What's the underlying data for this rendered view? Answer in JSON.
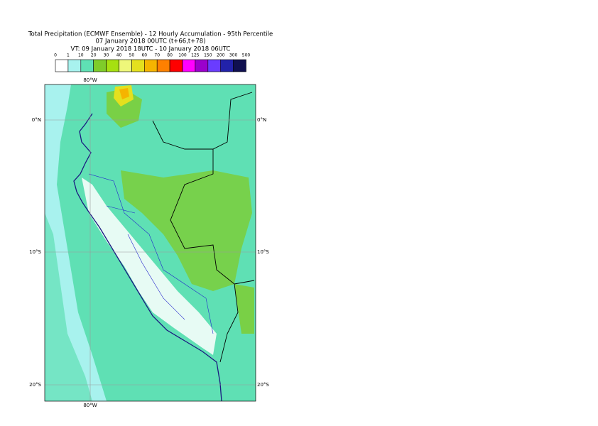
{
  "title_lines": [
    "Total Precipitation (ECMWF Ensemble) - 12 Hourly Accumulation - 95th Percentile",
    "07 January 2018 00UTC (t+66,t+78)",
    "VT: 09 January 2018 18UTC - 10 January 2018 06UTC"
  ],
  "legend": {
    "labels": [
      0,
      1,
      10,
      20,
      30,
      40,
      50,
      60,
      70,
      80,
      100,
      125,
      150,
      200,
      300,
      500
    ],
    "colors": [
      "#ffffff",
      "#a8f2ee",
      "#5fe0b4",
      "#7fcc2a",
      "#a6e010",
      "#eef77a",
      "#e4e01e",
      "#f5b400",
      "#ff8000",
      "#ff0000",
      "#ff00ff",
      "#9a00cc",
      "#6a3cff",
      "#2222aa",
      "#101050"
    ]
  },
  "map": {
    "lon_labels": [
      "80°W"
    ],
    "lat_labels": [
      "0°N",
      "10°S",
      "20°S"
    ]
  }
}
